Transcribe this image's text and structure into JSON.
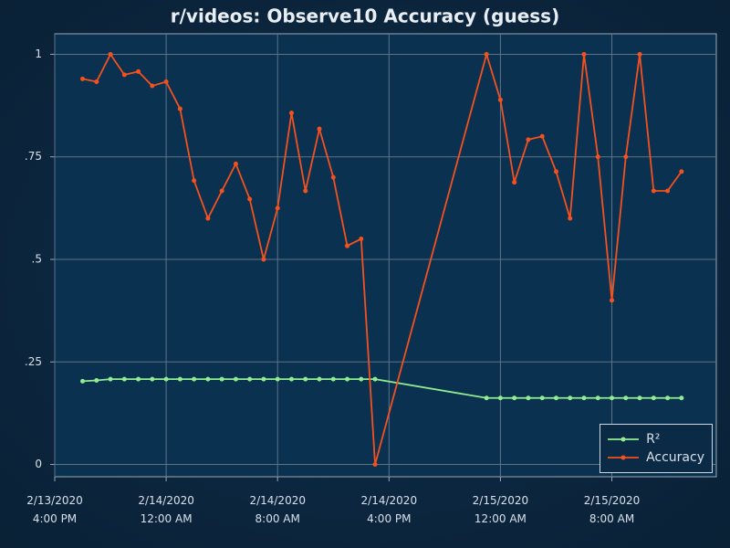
{
  "chart_data": {
    "type": "line",
    "title": "r/videos: Observe10 Accuracy (guess)",
    "x": [
      "2020-02-13T18:00",
      "2020-02-13T19:00",
      "2020-02-13T20:00",
      "2020-02-13T21:00",
      "2020-02-13T22:00",
      "2020-02-13T23:00",
      "2020-02-14T00:00",
      "2020-02-14T01:00",
      "2020-02-14T02:00",
      "2020-02-14T03:00",
      "2020-02-14T04:00",
      "2020-02-14T05:00",
      "2020-02-14T06:00",
      "2020-02-14T07:00",
      "2020-02-14T08:00",
      "2020-02-14T09:00",
      "2020-02-14T10:00",
      "2020-02-14T11:00",
      "2020-02-14T12:00",
      "2020-02-14T13:00",
      "2020-02-14T14:00",
      "2020-02-14T15:00",
      "2020-02-14T23:00",
      "2020-02-15T00:00",
      "2020-02-15T01:00",
      "2020-02-15T02:00",
      "2020-02-15T03:00",
      "2020-02-15T04:00",
      "2020-02-15T05:00",
      "2020-02-15T06:00",
      "2020-02-15T07:00",
      "2020-02-15T08:00",
      "2020-02-15T09:00",
      "2020-02-15T10:00",
      "2020-02-15T11:00",
      "2020-02-15T12:00",
      "2020-02-15T13:00"
    ],
    "series": [
      {
        "name": "R²",
        "color": "#90ee90",
        "values": [
          0.203,
          0.205,
          0.208,
          0.208,
          0.208,
          0.208,
          0.208,
          0.208,
          0.208,
          0.208,
          0.208,
          0.208,
          0.208,
          0.208,
          0.208,
          0.208,
          0.208,
          0.208,
          0.208,
          0.208,
          0.208,
          0.208,
          0.162,
          0.162,
          0.162,
          0.162,
          0.162,
          0.162,
          0.162,
          0.162,
          0.162,
          0.162,
          0.162,
          0.162,
          0.162,
          0.162,
          0.162
        ]
      },
      {
        "name": "Accuracy",
        "color": "#f4511e",
        "values": [
          0.94,
          0.933,
          1,
          0.95,
          0.958,
          0.923,
          0.933,
          0.867,
          0.692,
          0.6,
          0.667,
          0.733,
          0.647,
          0.5,
          0.625,
          0.857,
          0.667,
          0.818,
          0.7,
          0.533,
          0.55,
          0,
          1,
          0.889,
          0.688,
          0.792,
          0.8,
          0.714,
          0.6,
          1,
          0.75,
          0.4,
          0.75,
          1,
          0.667,
          0.667,
          0.714
        ]
      }
    ],
    "xlim": [
      "2020-02-13T16:00",
      "2020-02-15T15:30"
    ],
    "xticks": [
      {
        "value": "2020-02-13T16:00",
        "label": "2/13/2020\n4:00 PM"
      },
      {
        "value": "2020-02-14T00:00",
        "label": "2/14/2020\n12:00 AM"
      },
      {
        "value": "2020-02-14T08:00",
        "label": "2/14/2020\n8:00 AM"
      },
      {
        "value": "2020-02-14T16:00",
        "label": "2/14/2020\n4:00 PM"
      },
      {
        "value": "2020-02-15T00:00",
        "label": "2/15/2020\n12:00 AM"
      },
      {
        "value": "2020-02-15T08:00",
        "label": "2/15/2020\n8:00 AM"
      }
    ],
    "ylim": [
      -0.03,
      1.05
    ],
    "yticks": [
      0,
      {
        "value": 0.25,
        "label": ".25"
      },
      {
        "value": 0.5,
        "label": ".5"
      },
      {
        "value": 0.75,
        "label": ".75"
      },
      1
    ],
    "grid": true,
    "legend": "bottom-right"
  }
}
